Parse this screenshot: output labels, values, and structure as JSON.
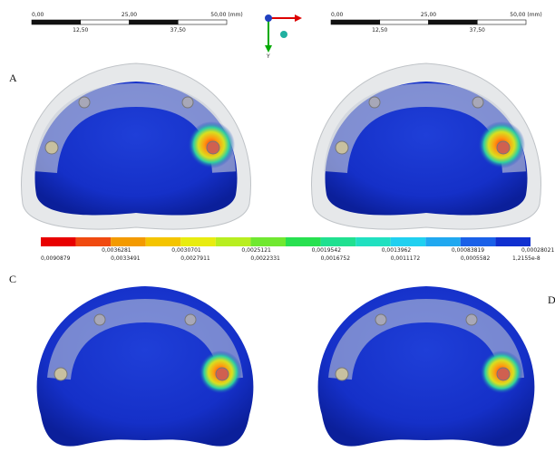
{
  "scale_bars": [
    {
      "top": [
        "0,00",
        "25,00",
        "50,00 (mm)"
      ],
      "bottom": [
        "12,50",
        "37,50"
      ]
    },
    {
      "top": [
        "0,00",
        "25,00",
        "50,00 (mm)"
      ],
      "bottom": [
        "12,50",
        "37,50"
      ]
    }
  ],
  "axis_label": "Y",
  "panels": [
    "A",
    "C",
    "D"
  ],
  "legend": {
    "upper_labels": [
      "0,0036281",
      "0,0030701",
      "0,0025121",
      "0,0019542",
      "0,0013962",
      "0,00083819",
      "0,00028021"
    ],
    "lower_labels": [
      "0,0090879",
      "0,0033491",
      "0,0027911",
      "0,0022331",
      "0,0016752",
      "0,0011172",
      "0,0005582",
      "1,2155e-8"
    ]
  }
}
